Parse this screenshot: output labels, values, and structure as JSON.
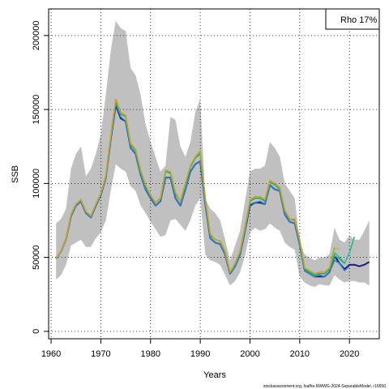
{
  "chart_data": {
    "type": "line",
    "xlabel": "Years",
    "ylabel": "SSB",
    "xlim": [
      1959.5,
      2026.0
    ],
    "ylim": [
      -5000,
      218000
    ],
    "x_ticks": [
      1960,
      1970,
      1980,
      1990,
      2000,
      2010,
      2020
    ],
    "y_ticks": [
      0,
      50000,
      100000,
      150000,
      200000
    ],
    "grid": true,
    "legend_text": "Rho 17%",
    "legend_position": "top-right",
    "source": "stockassessment.org, fsafhe-NWWG-2024-SeparableModel, r16550",
    "confidence_band": {
      "x": [
        1961,
        1962,
        1963,
        1964,
        1965,
        1966,
        1967,
        1968,
        1969,
        1970,
        1971,
        1972,
        1973,
        1974,
        1975,
        1976,
        1977,
        1978,
        1979,
        1980,
        1981,
        1982,
        1983,
        1984,
        1985,
        1986,
        1987,
        1988,
        1989,
        1990,
        1991,
        1992,
        1993,
        1994,
        1995,
        1996,
        1997,
        1998,
        1999,
        2000,
        2001,
        2002,
        2003,
        2004,
        2005,
        2006,
        2007,
        2008,
        2009,
        2010,
        2011,
        2012,
        2013,
        2014,
        2015,
        2016,
        2017,
        2018,
        2019,
        2020,
        2021,
        2022,
        2023,
        2024
      ],
      "upper": [
        73000,
        76000,
        83000,
        110000,
        120000,
        125000,
        105000,
        110000,
        120000,
        133000,
        160000,
        190000,
        210000,
        205000,
        203000,
        178000,
        173000,
        160000,
        140000,
        128000,
        118000,
        108000,
        112000,
        145000,
        143000,
        125000,
        118000,
        128000,
        148000,
        157000,
        90000,
        83000,
        80000,
        75000,
        62000,
        48000,
        58000,
        68000,
        88000,
        108000,
        110000,
        110000,
        112000,
        128000,
        124000,
        118000,
        100000,
        95000,
        90000,
        60000,
        52000,
        50000,
        48000,
        50000,
        50000,
        52000,
        70000,
        62000,
        60000,
        65000,
        62000,
        62000,
        68000,
        75000
      ],
      "lower": [
        35000,
        38000,
        45000,
        58000,
        60000,
        62000,
        57000,
        57000,
        63000,
        67000,
        75000,
        95000,
        113000,
        110000,
        108000,
        98000,
        95000,
        85000,
        80000,
        74000,
        69000,
        64000,
        65000,
        75000,
        76000,
        72000,
        68000,
        75000,
        85000,
        90000,
        52000,
        48000,
        47000,
        45000,
        38000,
        31000,
        34000,
        40000,
        51000,
        67000,
        70000,
        68000,
        69000,
        73000,
        70000,
        68000,
        60000,
        57000,
        55000,
        37000,
        33000,
        31000,
        30000,
        32000,
        31000,
        31000,
        38000,
        35000,
        33000,
        34000,
        34000,
        33000,
        33000,
        31000
      ]
    },
    "series": [
      {
        "x": [
          1961,
          1962,
          1963,
          1964,
          1965,
          1966,
          1967,
          1968,
          1969,
          1970,
          1971,
          1972,
          1973,
          1974,
          1975,
          1976,
          1977,
          1978,
          1979,
          1980,
          1981,
          1982,
          1983,
          1984,
          1985,
          1986,
          1987,
          1988,
          1989,
          1990,
          1991,
          1992,
          1993,
          1994,
          1995,
          1996,
          1997,
          1998,
          1999,
          2000,
          2001,
          2002,
          2003,
          2004,
          2005,
          2006,
          2007,
          2008,
          2009,
          2010,
          2011,
          2012,
          2013,
          2014,
          2015,
          2016,
          2017,
          2018,
          2019,
          2020,
          2021,
          2022,
          2023,
          2024
        ],
        "values": [
          49000,
          54000,
          62000,
          78000,
          85000,
          88000,
          80000,
          77000,
          85000,
          92000,
          104000,
          130000,
          153000,
          144000,
          142000,
          124000,
          120000,
          106000,
          96000,
          90000,
          85000,
          88000,
          104000,
          104000,
          90000,
          85000,
          96000,
          108000,
          113000,
          115000,
          86000,
          63000,
          60000,
          59000,
          52000,
          39000,
          44000,
          52000,
          68000,
          85000,
          87000,
          87000,
          86000,
          99000,
          96000,
          95000,
          79000,
          74000,
          73000,
          59000,
          41000,
          39000,
          37000,
          37000,
          37000,
          40000,
          51000,
          46000,
          42000,
          45000,
          45000,
          44000,
          45000,
          47000
        ],
        "color": "#1a1a8c",
        "width": 2
      },
      {
        "x": [
          1961,
          1962,
          1963,
          1964,
          1965,
          1966,
          1967,
          1968,
          1969,
          1970,
          1971,
          1972,
          1973,
          1974,
          1975,
          1976,
          1977,
          1978,
          1979,
          1980,
          1981,
          1982,
          1983,
          1984,
          1985,
          1986,
          1987,
          1988,
          1989,
          1990,
          1991,
          1992,
          1993,
          1994,
          1995,
          1996,
          1997,
          1998,
          1999,
          2000,
          2001,
          2002,
          2003,
          2004,
          2005,
          2006,
          2007,
          2008,
          2009,
          2010,
          2011,
          2012,
          2013,
          2014,
          2015,
          2016,
          2017,
          2018,
          2019,
          2020
        ],
        "values": [
          49000,
          54000,
          62000,
          78000,
          85000,
          88000,
          80000,
          77000,
          85000,
          92000,
          104000,
          130000,
          154000,
          145000,
          142000,
          124000,
          120000,
          106000,
          96000,
          90000,
          85000,
          88000,
          104000,
          104000,
          90000,
          85000,
          96000,
          108000,
          113000,
          115000,
          86000,
          63000,
          60000,
          59000,
          52000,
          39000,
          44000,
          52000,
          68000,
          86000,
          87000,
          88000,
          86000,
          99000,
          96000,
          95000,
          79000,
          74000,
          73000,
          59000,
          41000,
          39000,
          37000,
          38000,
          37000,
          40000,
          48000,
          46000,
          41000,
          44000
        ],
        "color": "#2e86c1",
        "width": 1.5
      },
      {
        "x": [
          1961,
          1962,
          1963,
          1964,
          1965,
          1966,
          1967,
          1968,
          1969,
          1970,
          1971,
          1972,
          1973,
          1974,
          1975,
          1976,
          1977,
          1978,
          1979,
          1980,
          1981,
          1982,
          1983,
          1984,
          1985,
          1986,
          1987,
          1988,
          1989,
          1990,
          1991,
          1992,
          1993,
          1994,
          1995,
          1996,
          1997,
          1998,
          1999,
          2000,
          2001,
          2002,
          2003,
          2004,
          2005,
          2006,
          2007,
          2008,
          2009,
          2010,
          2011,
          2012,
          2013,
          2014,
          2015,
          2016,
          2017,
          2018,
          2019,
          2020,
          2021
        ],
        "values": [
          49000,
          54000,
          62000,
          79000,
          86000,
          89000,
          81000,
          78000,
          86000,
          93000,
          105000,
          132000,
          157000,
          148000,
          145000,
          127000,
          122000,
          109000,
          99000,
          92000,
          87000,
          90000,
          108000,
          107000,
          93000,
          88000,
          99000,
          112000,
          118000,
          121000,
          90000,
          65000,
          62000,
          61000,
          54000,
          40000,
          45000,
          54000,
          70000,
          88000,
          90000,
          90000,
          89000,
          101000,
          99000,
          97000,
          81000,
          76000,
          75000,
          61000,
          42000,
          40000,
          38000,
          39000,
          39000,
          42000,
          53000,
          50000,
          46000,
          53000,
          64000
        ],
        "color": "#1abc9c",
        "width": 1.5
      },
      {
        "x": [
          1961,
          1962,
          1963,
          1964,
          1965,
          1966,
          1967,
          1968,
          1969,
          1970,
          1971,
          1972,
          1973,
          1974,
          1975,
          1976,
          1977,
          1978,
          1979,
          1980,
          1981,
          1982,
          1983,
          1984,
          1985,
          1986,
          1987,
          1988,
          1989,
          1990,
          1991,
          1992,
          1993,
          1994,
          1995,
          1996,
          1997,
          1998,
          1999,
          2000,
          2001,
          2002,
          2003,
          2004,
          2005,
          2006,
          2007,
          2008,
          2009,
          2010,
          2011,
          2012,
          2013,
          2014,
          2015,
          2016,
          2017,
          2018,
          2019
        ],
        "values": [
          49000,
          54000,
          62000,
          79000,
          86000,
          89000,
          81000,
          78000,
          86000,
          93000,
          105000,
          132000,
          156000,
          147000,
          145000,
          126000,
          122000,
          108000,
          98000,
          92000,
          87000,
          90000,
          108000,
          107000,
          93000,
          88000,
          99000,
          111000,
          117000,
          120000,
          89000,
          65000,
          62000,
          61000,
          54000,
          40000,
          45000,
          54000,
          70000,
          88000,
          90000,
          90000,
          88000,
          101000,
          99000,
          96000,
          81000,
          76000,
          75000,
          61000,
          42000,
          40000,
          38000,
          39000,
          39000,
          42000,
          51000,
          49000,
          46000
        ],
        "color": "#27ae60",
        "width": 1.5
      },
      {
        "x": [
          1961,
          1962,
          1963,
          1964,
          1965,
          1966,
          1967,
          1968,
          1969,
          1970,
          1971,
          1972,
          1973,
          1974,
          1975,
          1976,
          1977,
          1978,
          1979,
          1980,
          1981,
          1982,
          1983,
          1984,
          1985,
          1986,
          1987,
          1988,
          1989,
          1990,
          1991,
          1992,
          1993,
          1994,
          1995,
          1996,
          1997,
          1998,
          1999,
          2000,
          2001,
          2002,
          2003,
          2004,
          2005,
          2006,
          2007,
          2008,
          2009,
          2010,
          2011,
          2012,
          2013,
          2014,
          2015,
          2016,
          2017,
          2018
        ],
        "values": [
          49000,
          54000,
          62000,
          79000,
          86000,
          89000,
          81000,
          78000,
          86000,
          93000,
          105000,
          132000,
          157000,
          148000,
          146000,
          127000,
          123000,
          109000,
          99000,
          92000,
          87000,
          90000,
          109000,
          108000,
          94000,
          88000,
          100000,
          112000,
          118000,
          122000,
          90000,
          66000,
          62000,
          61000,
          54000,
          40000,
          46000,
          54000,
          71000,
          89000,
          91000,
          91000,
          89000,
          102000,
          100000,
          97000,
          82000,
          76000,
          76000,
          62000,
          43000,
          41000,
          39000,
          40000,
          40000,
          43000,
          56000,
          56000
        ],
        "color": "#9acd32",
        "width": 1.5
      },
      {
        "x": [
          1961,
          1962,
          1963,
          1964,
          1965,
          1966,
          1967,
          1968,
          1969,
          1970,
          1971,
          1972,
          1973,
          1974,
          1975,
          1976,
          1977,
          1978,
          1979,
          1980,
          1981,
          1982,
          1983,
          1984,
          1985,
          1986,
          1987,
          1988,
          1989,
          1990,
          1991,
          1992,
          1993,
          1994,
          1995,
          1996,
          1997,
          1998,
          1999,
          2000,
          2001,
          2002,
          2003,
          2004,
          2005,
          2006,
          2007,
          2008,
          2009,
          2010,
          2011,
          2012,
          2013,
          2014,
          2015,
          2016,
          2017
        ],
        "values": [
          49000,
          54000,
          62000,
          79000,
          86000,
          89000,
          81000,
          78000,
          86000,
          93000,
          105000,
          132000,
          157000,
          148000,
          146000,
          127000,
          123000,
          109000,
          99000,
          92000,
          87000,
          90000,
          109000,
          108000,
          94000,
          88000,
          100000,
          112000,
          118000,
          122000,
          90000,
          66000,
          62000,
          61000,
          54000,
          40000,
          46000,
          54000,
          71000,
          89000,
          91000,
          91000,
          89000,
          102000,
          100000,
          97000,
          82000,
          76000,
          76000,
          62000,
          43000,
          41000,
          39000,
          40000,
          40000,
          43000,
          57000
        ],
        "color": "#c8a02a",
        "width": 1.5
      }
    ]
  }
}
